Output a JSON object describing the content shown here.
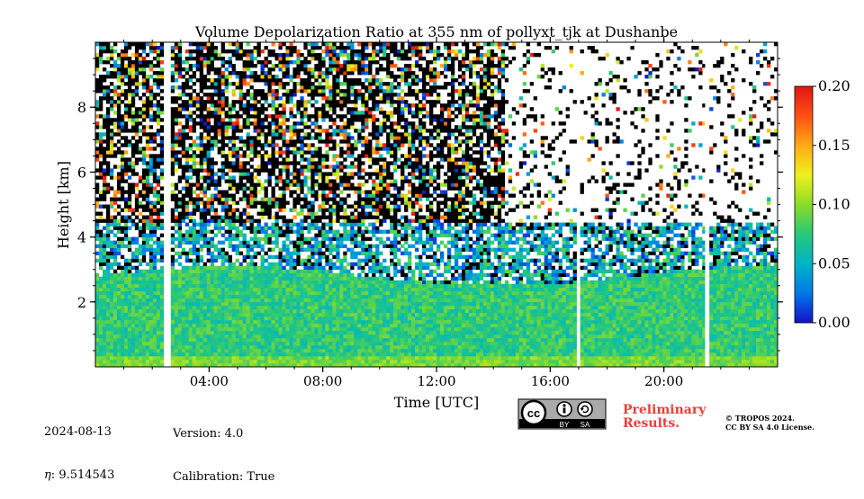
{
  "chart_data": {
    "type": "heatmap",
    "title": "Volume Depolarization Ratio at 355 nm of pollyxt_tjk at Dushanbe",
    "xlabel": "Time [UTC]",
    "ylabel": "Height [km]",
    "xlim": [
      0,
      24
    ],
    "ylim": [
      0,
      10
    ],
    "x_ticks": [
      4,
      8,
      12,
      16,
      20
    ],
    "x_tick_labels": [
      "04:00",
      "08:00",
      "12:00",
      "16:00",
      "20:00"
    ],
    "y_ticks": [
      2,
      4,
      6,
      8
    ],
    "y_tick_labels": [
      "2",
      "4",
      "6",
      "8"
    ],
    "colorbar": {
      "min": 0.0,
      "max": 0.2,
      "ticks": [
        0.0,
        0.05,
        0.1,
        0.15,
        0.2
      ],
      "tick_labels": [
        "0.00",
        "0.05",
        "0.10",
        "0.15",
        "0.20"
      ],
      "colormap": [
        "#1212c8",
        "#0078e6",
        "#00b4c8",
        "#28c878",
        "#8cdc28",
        "#f0f01e",
        "#ffaa14",
        "#ff5014",
        "#e11414"
      ]
    },
    "data_gaps_hours": [
      [
        2.45,
        2.6
      ],
      [
        16.95,
        17.05
      ],
      [
        21.45,
        21.55
      ]
    ],
    "cloud_top_km": 4.8,
    "aerosol_layer_top_km": 3.0,
    "noise_dense_period_hours": [
      0,
      14.4
    ]
  },
  "footer": {
    "date": "2024-08-13",
    "eta": "9.514543",
    "eta_symbol": "η",
    "version": "Version: 4.0",
    "calibration": "Calibration: True",
    "prelim_line1": "Preliminary",
    "prelim_line2": "Results.",
    "tropos_line1": "© TROPOS 2024.",
    "tropos_line2": "CC BY SA 4.0 License.",
    "license_by": "BY",
    "license_sa": "SA",
    "license_cc": "cc"
  }
}
